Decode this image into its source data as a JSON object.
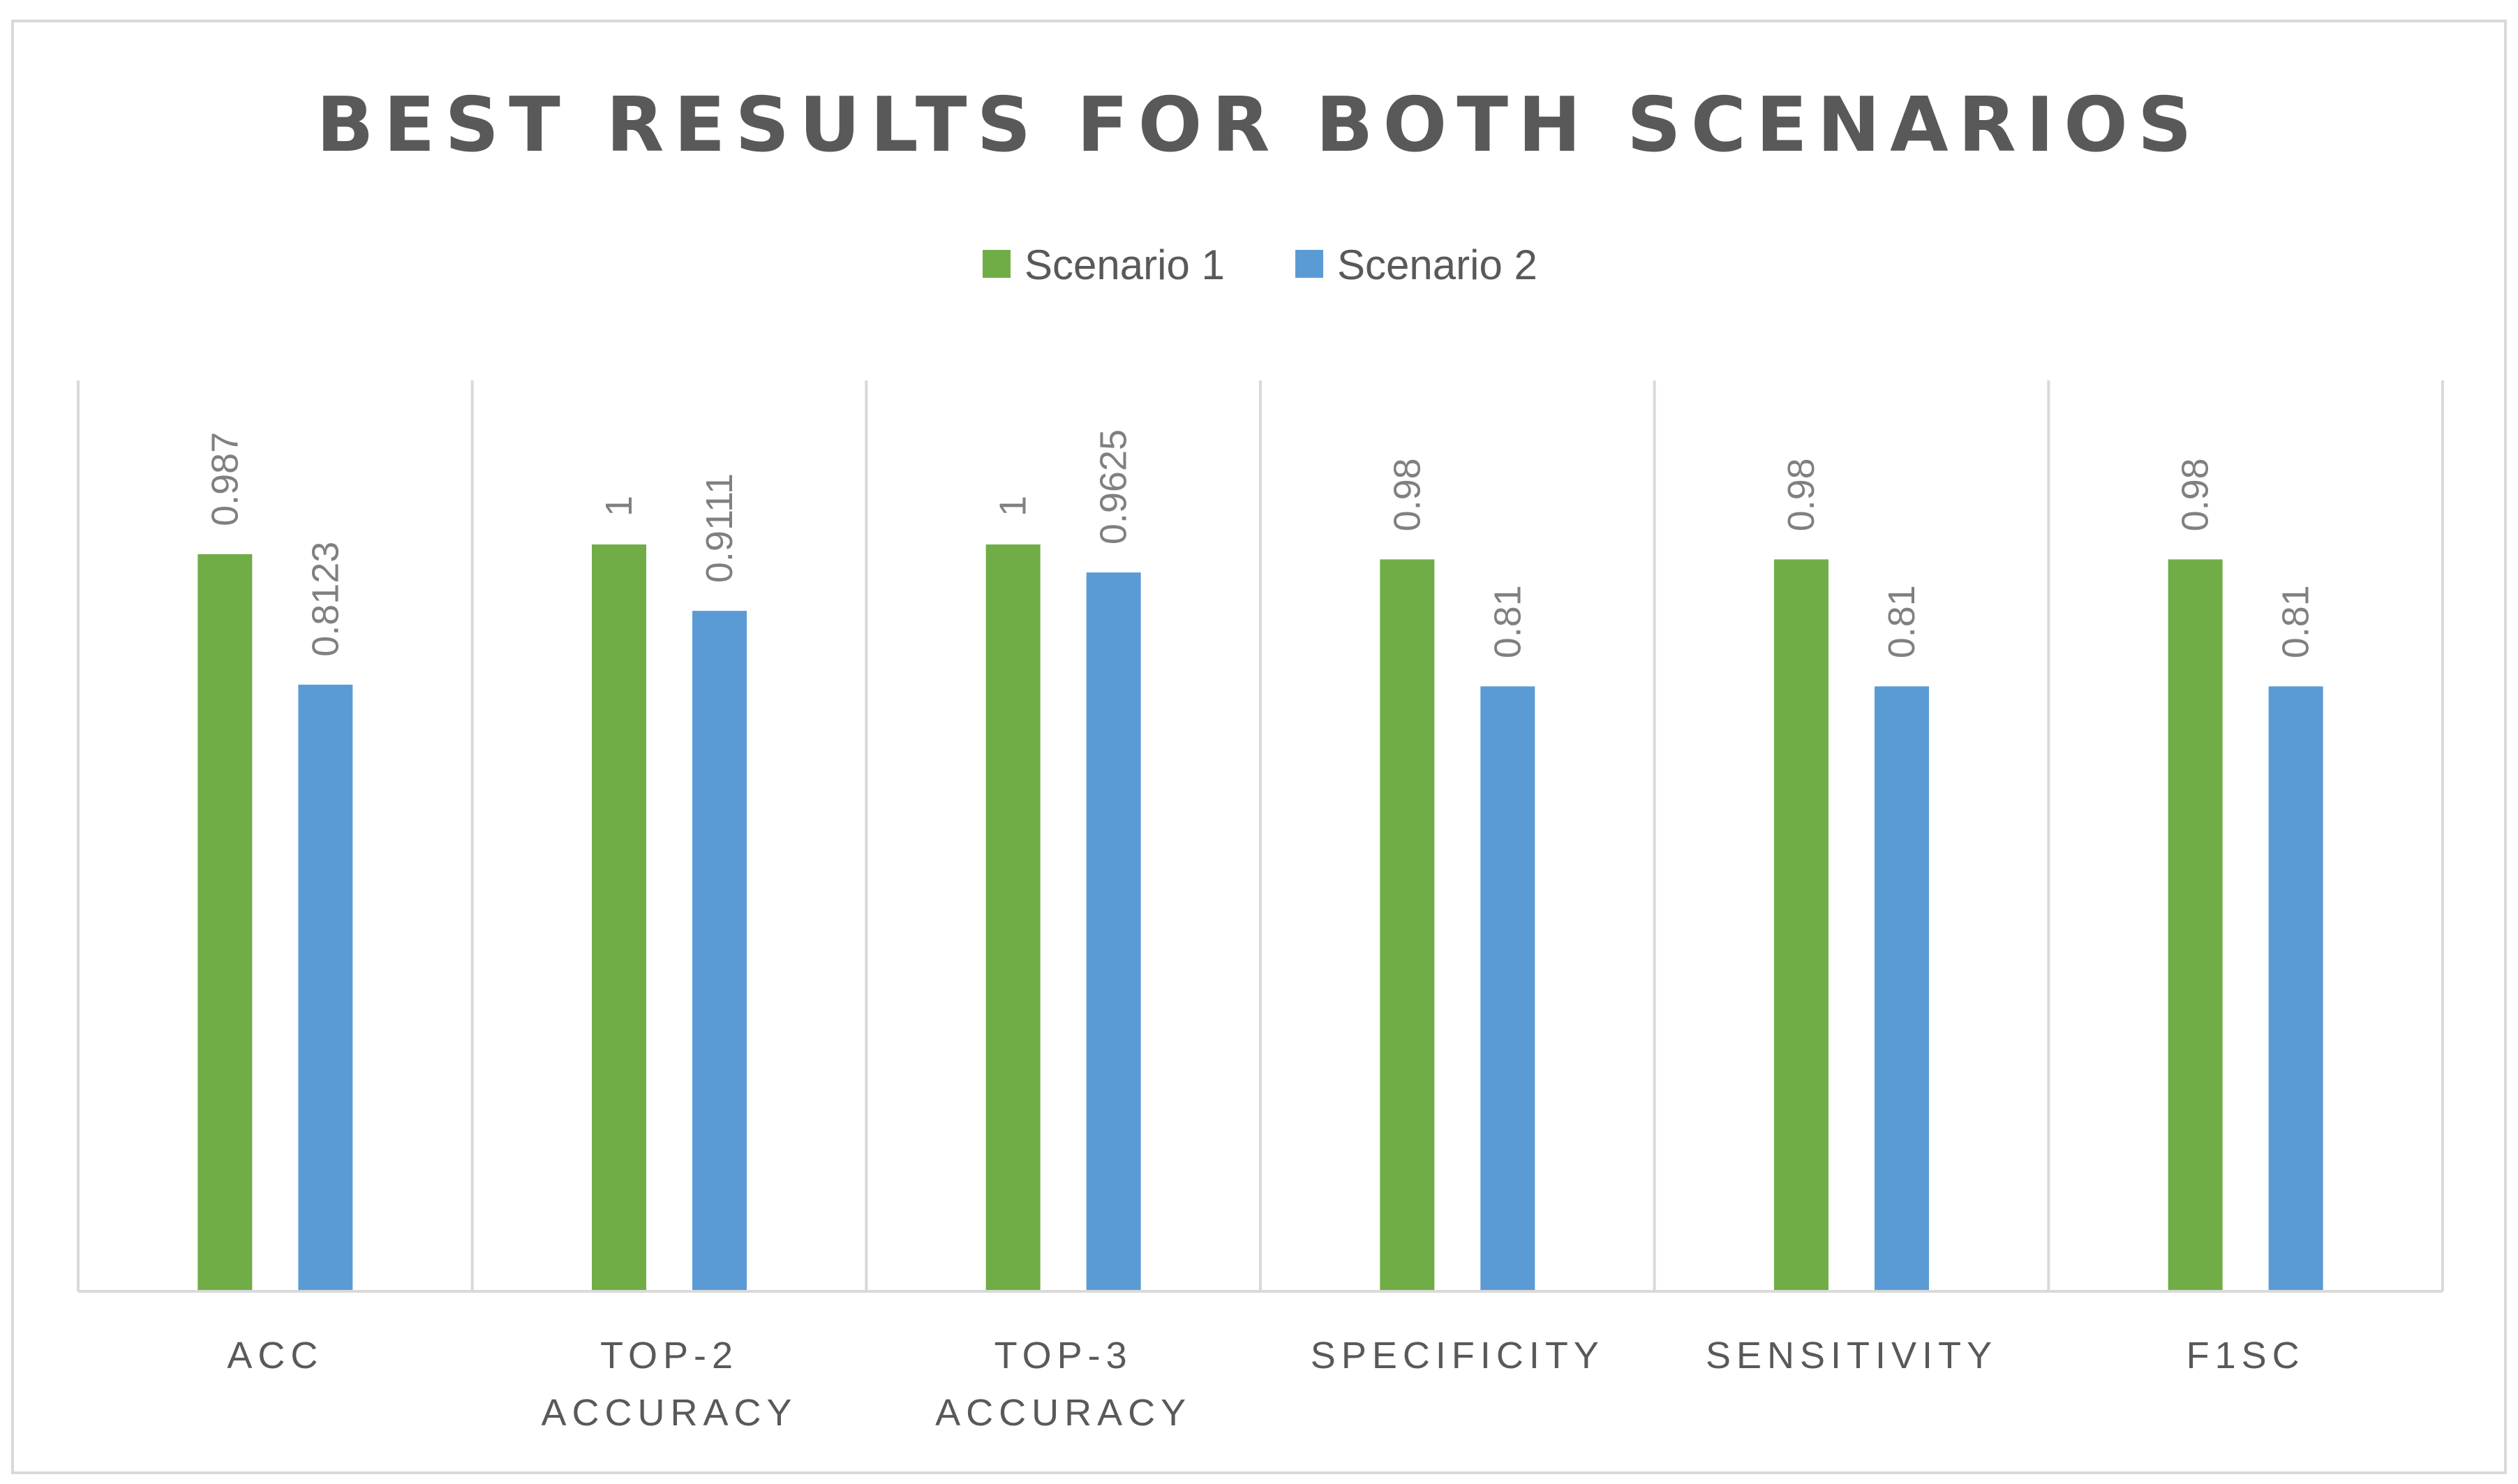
{
  "chart_data": {
    "type": "bar",
    "title": "BEST RESULTS FOR BOTH SCENARIOS",
    "categories": [
      [
        "ACC"
      ],
      [
        "TOP-2",
        "ACCURACY"
      ],
      [
        "TOP-3",
        "ACCURACY"
      ],
      [
        "SPECIFICITY"
      ],
      [
        "SENSITIVITY"
      ],
      [
        "F1SC"
      ]
    ],
    "series": [
      {
        "name": "Scenario 1",
        "color": "#70ad47",
        "values": [
          0.987,
          1,
          1,
          0.98,
          0.98,
          0.98
        ],
        "labels": [
          "0.987",
          "1",
          "1",
          "0.98",
          "0.98",
          "0.98"
        ]
      },
      {
        "name": "Scenario 2",
        "color": "#5b9bd5",
        "values": [
          0.8123,
          0.9111,
          0.9625,
          0.81,
          0.81,
          0.81
        ],
        "labels": [
          "0.8123",
          "0.9111",
          "0.9625",
          "0.81",
          "0.81",
          "0.81"
        ]
      }
    ],
    "xlabel": "",
    "ylabel": "",
    "ylim": [
      0,
      1.2
    ],
    "grid": "vertical category separators",
    "legend": "top-center"
  }
}
